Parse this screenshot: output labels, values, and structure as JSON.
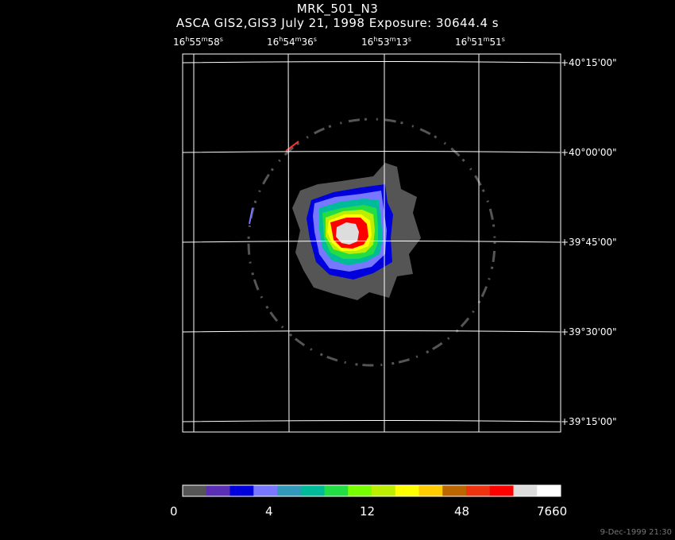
{
  "header": {
    "title": "MRK_501_N3",
    "subtitle": "ASCA GIS2,GIS3 July 21, 1998 Exposure: 30644.4 s"
  },
  "ra_labels": [
    {
      "h": "16",
      "m": "55",
      "s": "58"
    },
    {
      "h": "16",
      "m": "54",
      "s": "36"
    },
    {
      "h": "16",
      "m": "53",
      "s": "13"
    },
    {
      "h": "16",
      "m": "51",
      "s": "51"
    }
  ],
  "dec_labels": [
    "+40°15'00\"",
    "+40°00'00\"",
    "+39°45'00\"",
    "+39°30'00\"",
    "+39°15'00\""
  ],
  "colorbar": {
    "colors": [
      "#555555",
      "#5a2fb5",
      "#0000dd",
      "#7777ff",
      "#3399bb",
      "#00bb99",
      "#22dd44",
      "#77ff00",
      "#bbee00",
      "#ffff00",
      "#ffcc00",
      "#bb6600",
      "#ee3311",
      "#ff0000",
      "#dddddd",
      "#ffffff"
    ],
    "labels": [
      "0",
      "4",
      "12",
      "48",
      "7660"
    ]
  },
  "footer": {
    "timestamp": "9-Dec-1999 21:30"
  }
}
